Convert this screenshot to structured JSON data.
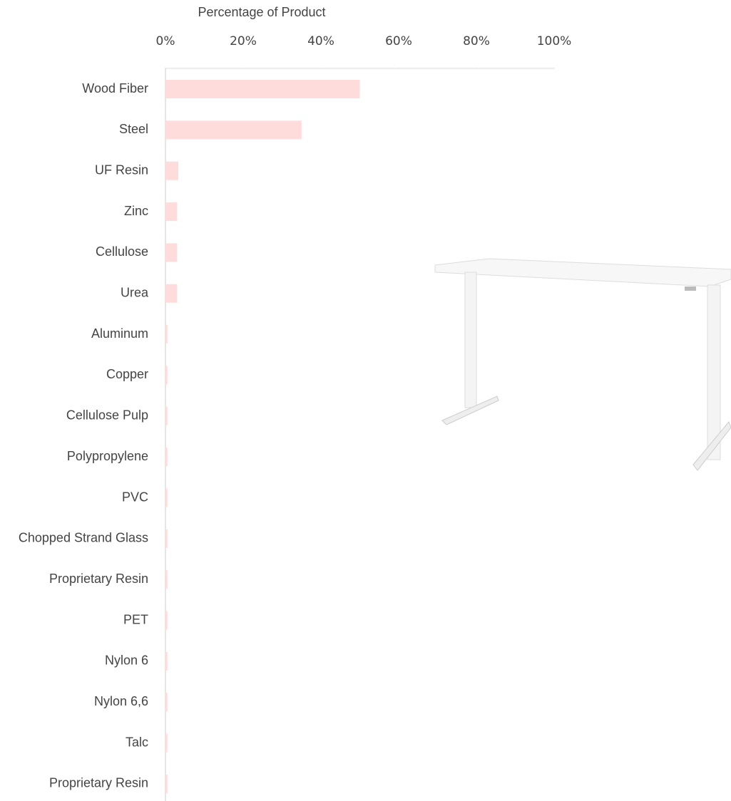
{
  "chart_data": {
    "type": "hbar",
    "x_label": "Percentage of Product",
    "categories": [
      "Wood Fiber",
      "Steel",
      "UF Resin",
      "Zinc",
      "Cellulose",
      "Urea",
      "Aluminum",
      "Copper",
      "Cellulose Pulp",
      "Polypropylene",
      "PVC",
      "Chopped Strand Glass",
      "Proprietary Resin",
      "PET",
      "Nylon 6",
      "Nylon 6,6",
      "Talc",
      "Proprietary Resin"
    ],
    "values": [
      50,
      35,
      3.3,
      3,
      3,
      3,
      0.5,
      0.5,
      0.5,
      0.5,
      0.5,
      0.5,
      0.5,
      0.5,
      0.5,
      0.5,
      0.5,
      0.5
    ],
    "color": "#ffdcdc",
    "xlim": [
      0,
      100
    ],
    "xticks": [
      {
        "value": 0,
        "label": "0%"
      },
      {
        "value": 20,
        "label": "20%"
      },
      {
        "value": 40,
        "label": "40%"
      },
      {
        "value": 60,
        "label": "60%"
      },
      {
        "value": 80,
        "label": "80%"
      },
      {
        "value": 100,
        "label": "100%"
      }
    ]
  }
}
